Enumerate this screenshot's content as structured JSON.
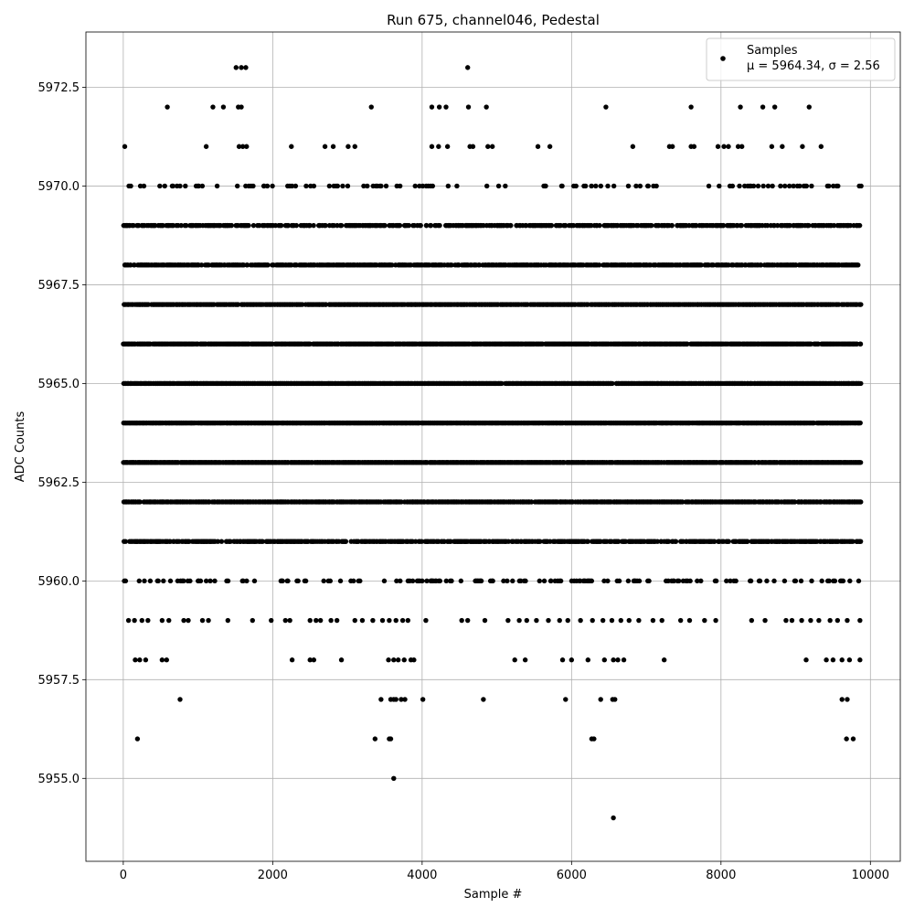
{
  "chart_data": {
    "type": "scatter",
    "title": "Run 675, channel046, Pedestal",
    "xlabel": "Sample #",
    "ylabel": "ADC Counts",
    "xlim": [
      -500,
      10400
    ],
    "ylim": [
      5952.9,
      5973.9
    ],
    "xticks": [
      0,
      2000,
      4000,
      6000,
      8000,
      10000
    ],
    "yticks": [
      5955.0,
      5957.5,
      5960.0,
      5962.5,
      5965.0,
      5967.5,
      5970.0,
      5972.5
    ],
    "xtick_labels": [
      "0",
      "2000",
      "4000",
      "6000",
      "8000",
      "10000"
    ],
    "ytick_labels": [
      "5955.0",
      "5957.5",
      "5960.0",
      "5962.5",
      "5965.0",
      "5967.5",
      "5970.0",
      "5972.5"
    ],
    "grid": true,
    "marker_color": "#000000",
    "grid_color": "#b0b0b0",
    "legend": {
      "placement": "top-right",
      "entries": [
        {
          "label": "Samples",
          "stats": "μ = 5964.34, σ = 2.56"
        }
      ]
    },
    "n_samples": 9870,
    "mean": 5964.34,
    "sigma": 2.56,
    "dense_levels": [
      5960,
      5961,
      5962,
      5963,
      5964,
      5965,
      5966,
      5967,
      5968,
      5969,
      5970
    ],
    "points": [
      {
        "x": 190,
        "y": 5956
      },
      {
        "x": 3370,
        "y": 5956
      },
      {
        "x": 3560,
        "y": 5956
      },
      {
        "x": 3580,
        "y": 5956
      },
      {
        "x": 6270,
        "y": 5956
      },
      {
        "x": 6300,
        "y": 5956
      },
      {
        "x": 9680,
        "y": 5956
      },
      {
        "x": 9770,
        "y": 5956
      },
      {
        "x": 3620,
        "y": 5955
      },
      {
        "x": 6560,
        "y": 5954
      },
      {
        "x": 760,
        "y": 5957
      },
      {
        "x": 3450,
        "y": 5957
      },
      {
        "x": 3580,
        "y": 5957
      },
      {
        "x": 3620,
        "y": 5957
      },
      {
        "x": 3650,
        "y": 5957
      },
      {
        "x": 3720,
        "y": 5957
      },
      {
        "x": 3770,
        "y": 5957
      },
      {
        "x": 4010,
        "y": 5957
      },
      {
        "x": 4820,
        "y": 5957
      },
      {
        "x": 5920,
        "y": 5957
      },
      {
        "x": 6390,
        "y": 5957
      },
      {
        "x": 6550,
        "y": 5957
      },
      {
        "x": 6580,
        "y": 5957
      },
      {
        "x": 9620,
        "y": 5957
      },
      {
        "x": 9690,
        "y": 5957
      },
      {
        "x": 160,
        "y": 5958
      },
      {
        "x": 220,
        "y": 5958
      },
      {
        "x": 300,
        "y": 5958
      },
      {
        "x": 520,
        "y": 5958
      },
      {
        "x": 580,
        "y": 5958
      },
      {
        "x": 2260,
        "y": 5958
      },
      {
        "x": 2500,
        "y": 5958
      },
      {
        "x": 2550,
        "y": 5958
      },
      {
        "x": 2920,
        "y": 5958
      },
      {
        "x": 3550,
        "y": 5958
      },
      {
        "x": 3620,
        "y": 5958
      },
      {
        "x": 3680,
        "y": 5958
      },
      {
        "x": 3760,
        "y": 5958
      },
      {
        "x": 3850,
        "y": 5958
      },
      {
        "x": 3890,
        "y": 5958
      },
      {
        "x": 5240,
        "y": 5958
      },
      {
        "x": 5380,
        "y": 5958
      },
      {
        "x": 5880,
        "y": 5958
      },
      {
        "x": 6000,
        "y": 5958
      },
      {
        "x": 6220,
        "y": 5958
      },
      {
        "x": 6440,
        "y": 5958
      },
      {
        "x": 6560,
        "y": 5958
      },
      {
        "x": 6620,
        "y": 5958
      },
      {
        "x": 6700,
        "y": 5958
      },
      {
        "x": 7240,
        "y": 5958
      },
      {
        "x": 9140,
        "y": 5958
      },
      {
        "x": 9410,
        "y": 5958
      },
      {
        "x": 9500,
        "y": 5958
      },
      {
        "x": 9620,
        "y": 5958
      },
      {
        "x": 9720,
        "y": 5958
      },
      {
        "x": 9860,
        "y": 5958
      },
      {
        "x": 70,
        "y": 5959
      },
      {
        "x": 150,
        "y": 5959
      },
      {
        "x": 250,
        "y": 5959
      },
      {
        "x": 330,
        "y": 5959
      },
      {
        "x": 520,
        "y": 5959
      },
      {
        "x": 610,
        "y": 5959
      },
      {
        "x": 810,
        "y": 5959
      },
      {
        "x": 870,
        "y": 5959
      },
      {
        "x": 1060,
        "y": 5959
      },
      {
        "x": 1140,
        "y": 5959
      },
      {
        "x": 1400,
        "y": 5959
      },
      {
        "x": 1730,
        "y": 5959
      },
      {
        "x": 1980,
        "y": 5959
      },
      {
        "x": 2170,
        "y": 5959
      },
      {
        "x": 2230,
        "y": 5959
      },
      {
        "x": 2500,
        "y": 5959
      },
      {
        "x": 2580,
        "y": 5959
      },
      {
        "x": 2640,
        "y": 5959
      },
      {
        "x": 2780,
        "y": 5959
      },
      {
        "x": 2860,
        "y": 5959
      },
      {
        "x": 3100,
        "y": 5959
      },
      {
        "x": 3200,
        "y": 5959
      },
      {
        "x": 3340,
        "y": 5959
      },
      {
        "x": 3470,
        "y": 5959
      },
      {
        "x": 3560,
        "y": 5959
      },
      {
        "x": 3650,
        "y": 5959
      },
      {
        "x": 3740,
        "y": 5959
      },
      {
        "x": 3810,
        "y": 5959
      },
      {
        "x": 4050,
        "y": 5959
      },
      {
        "x": 4530,
        "y": 5959
      },
      {
        "x": 4610,
        "y": 5959
      },
      {
        "x": 4840,
        "y": 5959
      },
      {
        "x": 5150,
        "y": 5959
      },
      {
        "x": 5300,
        "y": 5959
      },
      {
        "x": 5400,
        "y": 5959
      },
      {
        "x": 5530,
        "y": 5959
      },
      {
        "x": 5690,
        "y": 5959
      },
      {
        "x": 5840,
        "y": 5959
      },
      {
        "x": 5950,
        "y": 5959
      },
      {
        "x": 6120,
        "y": 5959
      },
      {
        "x": 6280,
        "y": 5959
      },
      {
        "x": 6420,
        "y": 5959
      },
      {
        "x": 6540,
        "y": 5959
      },
      {
        "x": 6660,
        "y": 5959
      },
      {
        "x": 6770,
        "y": 5959
      },
      {
        "x": 6900,
        "y": 5959
      },
      {
        "x": 7090,
        "y": 5959
      },
      {
        "x": 7210,
        "y": 5959
      },
      {
        "x": 7460,
        "y": 5959
      },
      {
        "x": 7580,
        "y": 5959
      },
      {
        "x": 7780,
        "y": 5959
      },
      {
        "x": 7930,
        "y": 5959
      },
      {
        "x": 8410,
        "y": 5959
      },
      {
        "x": 8590,
        "y": 5959
      },
      {
        "x": 8870,
        "y": 5959
      },
      {
        "x": 8950,
        "y": 5959
      },
      {
        "x": 9080,
        "y": 5959
      },
      {
        "x": 9200,
        "y": 5959
      },
      {
        "x": 9310,
        "y": 5959
      },
      {
        "x": 9460,
        "y": 5959
      },
      {
        "x": 9560,
        "y": 5959
      },
      {
        "x": 9690,
        "y": 5959
      },
      {
        "x": 9860,
        "y": 5959
      },
      {
        "x": 20,
        "y": 5971
      },
      {
        "x": 1110,
        "y": 5971
      },
      {
        "x": 1550,
        "y": 5971
      },
      {
        "x": 1600,
        "y": 5971
      },
      {
        "x": 1650,
        "y": 5971
      },
      {
        "x": 2250,
        "y": 5971
      },
      {
        "x": 2700,
        "y": 5971
      },
      {
        "x": 2810,
        "y": 5971
      },
      {
        "x": 3010,
        "y": 5971
      },
      {
        "x": 3100,
        "y": 5971
      },
      {
        "x": 4130,
        "y": 5971
      },
      {
        "x": 4220,
        "y": 5971
      },
      {
        "x": 4340,
        "y": 5971
      },
      {
        "x": 4640,
        "y": 5971
      },
      {
        "x": 4680,
        "y": 5971
      },
      {
        "x": 4880,
        "y": 5971
      },
      {
        "x": 4940,
        "y": 5971
      },
      {
        "x": 5550,
        "y": 5971
      },
      {
        "x": 5710,
        "y": 5971
      },
      {
        "x": 6820,
        "y": 5971
      },
      {
        "x": 7310,
        "y": 5971
      },
      {
        "x": 7350,
        "y": 5971
      },
      {
        "x": 7600,
        "y": 5971
      },
      {
        "x": 7640,
        "y": 5971
      },
      {
        "x": 7960,
        "y": 5971
      },
      {
        "x": 8040,
        "y": 5971
      },
      {
        "x": 8100,
        "y": 5971
      },
      {
        "x": 8230,
        "y": 5971
      },
      {
        "x": 8280,
        "y": 5971
      },
      {
        "x": 8680,
        "y": 5971
      },
      {
        "x": 8820,
        "y": 5971
      },
      {
        "x": 9090,
        "y": 5971
      },
      {
        "x": 9340,
        "y": 5971
      },
      {
        "x": 590,
        "y": 5972
      },
      {
        "x": 1200,
        "y": 5972
      },
      {
        "x": 1340,
        "y": 5972
      },
      {
        "x": 1540,
        "y": 5972
      },
      {
        "x": 1580,
        "y": 5972
      },
      {
        "x": 3320,
        "y": 5972
      },
      {
        "x": 4130,
        "y": 5972
      },
      {
        "x": 4230,
        "y": 5972
      },
      {
        "x": 4320,
        "y": 5972
      },
      {
        "x": 4620,
        "y": 5972
      },
      {
        "x": 4860,
        "y": 5972
      },
      {
        "x": 6460,
        "y": 5972
      },
      {
        "x": 7600,
        "y": 5972
      },
      {
        "x": 8260,
        "y": 5972
      },
      {
        "x": 8560,
        "y": 5972
      },
      {
        "x": 8720,
        "y": 5972
      },
      {
        "x": 9180,
        "y": 5972
      },
      {
        "x": 1510,
        "y": 5973
      },
      {
        "x": 1580,
        "y": 5973
      },
      {
        "x": 1640,
        "y": 5973
      },
      {
        "x": 4610,
        "y": 5973
      }
    ]
  }
}
